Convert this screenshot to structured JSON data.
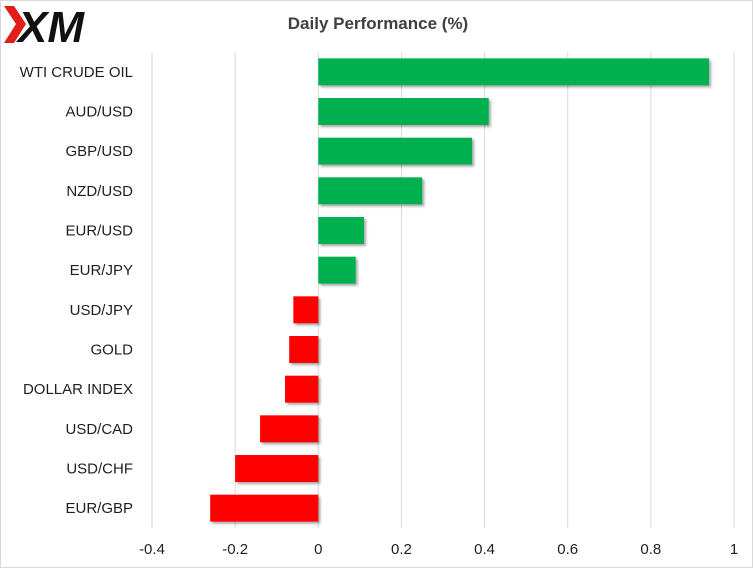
{
  "logo": {
    "text": "XM",
    "accent_color": "#e31d1a"
  },
  "chart_data": {
    "type": "bar",
    "orientation": "horizontal",
    "title": "Daily Performance  (%)",
    "categories": [
      "WTI CRUDE OIL",
      "AUD/USD",
      "GBP/USD",
      "NZD/USD",
      "EUR/USD",
      "EUR/JPY",
      "USD/JPY",
      "GOLD",
      "DOLLAR INDEX",
      "USD/CAD",
      "USD/CHF",
      "EUR/GBP"
    ],
    "values": [
      0.94,
      0.41,
      0.37,
      0.25,
      0.11,
      0.09,
      -0.06,
      -0.07,
      -0.08,
      -0.14,
      -0.2,
      -0.26
    ],
    "xlim": [
      -0.4,
      1
    ],
    "xticks": [
      -0.4,
      -0.2,
      0,
      0.2,
      0.4,
      0.6,
      0.8,
      1
    ],
    "tick_labels": [
      "-0.4",
      "-0.2",
      "0",
      "0.2",
      "0.4",
      "0.6",
      "0.8",
      "1"
    ],
    "grid": true,
    "positive_color": "#00b050",
    "negative_color": "#ff0000"
  }
}
